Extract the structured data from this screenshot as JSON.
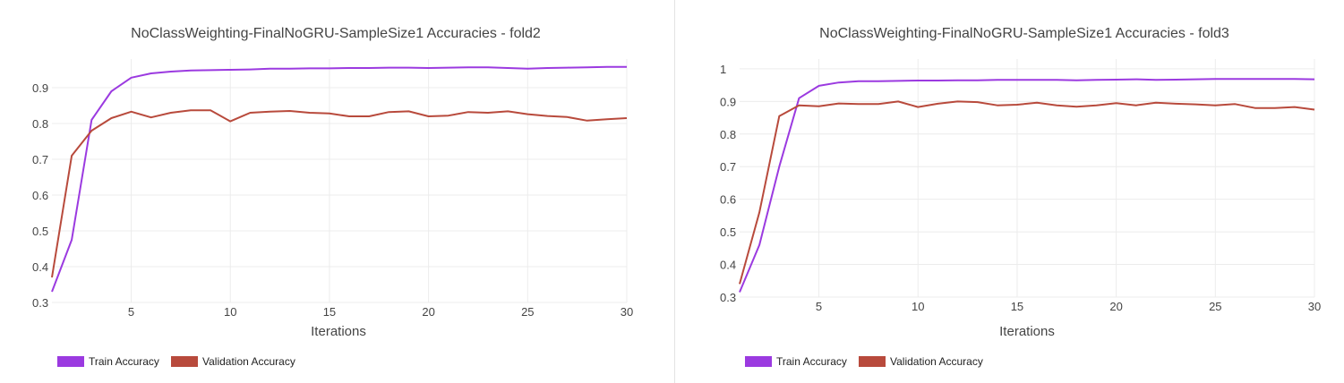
{
  "colors": {
    "train": "#9b3ae0",
    "validation": "#b84a3c"
  },
  "chart_data": [
    {
      "type": "line",
      "title": "NoClassWeighting-FinalNoGRU-SampleSize1 Accuracies - fold2",
      "xlabel": "Iterations",
      "ylabel": "",
      "xlim": [
        1,
        30
      ],
      "ylim": [
        0.3,
        0.98
      ],
      "x_ticks": [
        5,
        10,
        15,
        20,
        25,
        30
      ],
      "y_ticks": [
        0.3,
        0.4,
        0.5,
        0.6,
        0.7,
        0.8,
        0.9
      ],
      "y_tick_labels": [
        "0.3",
        "0.4",
        "0.5",
        "0.6",
        "0.7",
        "0.8",
        "0.9"
      ],
      "grid": true,
      "legend": "bottom-left",
      "x": [
        1,
        2,
        3,
        4,
        5,
        6,
        7,
        8,
        9,
        10,
        11,
        12,
        13,
        14,
        15,
        16,
        17,
        18,
        19,
        20,
        21,
        22,
        23,
        24,
        25,
        26,
        27,
        28,
        29,
        30
      ],
      "series": [
        {
          "name": "Train Accuracy",
          "color": "#9b3ae0",
          "values": [
            0.33,
            0.475,
            0.81,
            0.89,
            0.928,
            0.94,
            0.945,
            0.948,
            0.949,
            0.95,
            0.951,
            0.953,
            0.953,
            0.954,
            0.954,
            0.955,
            0.955,
            0.956,
            0.956,
            0.955,
            0.956,
            0.957,
            0.957,
            0.955,
            0.953,
            0.955,
            0.956,
            0.957,
            0.958,
            0.958
          ]
        },
        {
          "name": "Validation Accuracy",
          "color": "#b84a3c",
          "values": [
            0.37,
            0.71,
            0.78,
            0.815,
            0.833,
            0.817,
            0.83,
            0.837,
            0.837,
            0.806,
            0.83,
            0.833,
            0.835,
            0.83,
            0.828,
            0.82,
            0.82,
            0.832,
            0.834,
            0.82,
            0.822,
            0.832,
            0.83,
            0.834,
            0.826,
            0.821,
            0.818,
            0.808,
            0.812,
            0.815
          ]
        }
      ]
    },
    {
      "type": "line",
      "title": "NoClassWeighting-FinalNoGRU-SampleSize1 Accuracies - fold3",
      "xlabel": "Iterations",
      "ylabel": "",
      "xlim": [
        1,
        30
      ],
      "ylim": [
        0.3,
        1.03
      ],
      "x_ticks": [
        5,
        10,
        15,
        20,
        25,
        30
      ],
      "y_ticks": [
        0.3,
        0.4,
        0.5,
        0.6,
        0.7,
        0.8,
        0.9,
        1.0
      ],
      "y_tick_labels": [
        "0.3",
        "0.4",
        "0.5",
        "0.6",
        "0.7",
        "0.8",
        "0.9",
        "1"
      ],
      "grid": true,
      "legend": "bottom-left",
      "x": [
        1,
        2,
        3,
        4,
        5,
        6,
        7,
        8,
        9,
        10,
        11,
        12,
        13,
        14,
        15,
        16,
        17,
        18,
        19,
        20,
        21,
        22,
        23,
        24,
        25,
        26,
        27,
        28,
        29,
        30
      ],
      "series": [
        {
          "name": "Train Accuracy",
          "color": "#9b3ae0",
          "values": [
            0.315,
            0.46,
            0.7,
            0.91,
            0.948,
            0.958,
            0.962,
            0.962,
            0.963,
            0.964,
            0.964,
            0.965,
            0.965,
            0.966,
            0.966,
            0.966,
            0.966,
            0.965,
            0.966,
            0.967,
            0.968,
            0.966,
            0.967,
            0.968,
            0.969,
            0.969,
            0.969,
            0.969,
            0.969,
            0.968
          ]
        },
        {
          "name": "Validation Accuracy",
          "color": "#b84a3c",
          "values": [
            0.34,
            0.56,
            0.855,
            0.888,
            0.885,
            0.894,
            0.892,
            0.892,
            0.9,
            0.883,
            0.893,
            0.9,
            0.898,
            0.888,
            0.89,
            0.896,
            0.888,
            0.884,
            0.888,
            0.895,
            0.888,
            0.896,
            0.893,
            0.891,
            0.888,
            0.892,
            0.88,
            0.88,
            0.883,
            0.875
          ]
        }
      ]
    }
  ]
}
